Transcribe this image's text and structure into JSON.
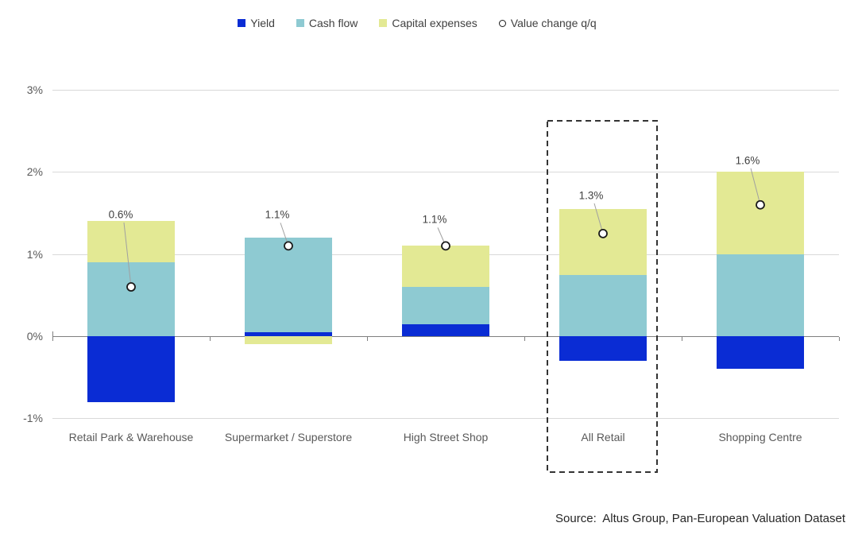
{
  "chart_data": {
    "type": "bar",
    "stacked": true,
    "title": "",
    "categories": [
      "Retail Park & Warehouse",
      "Supermarket / Superstore",
      "High Street Shop",
      "All Retail",
      "Shopping Centre"
    ],
    "series": [
      {
        "name": "Yield",
        "color": "#0A2CD4",
        "values": [
          -0.8,
          0.05,
          0.15,
          -0.3,
          -0.4
        ]
      },
      {
        "name": "Cash flow",
        "color": "#8ECAD2",
        "values": [
          0.9,
          1.15,
          0.45,
          0.75,
          1.0
        ]
      },
      {
        "name": "Capital expenses",
        "color": "#E3E994",
        "values": [
          0.5,
          -0.1,
          0.5,
          0.8,
          1.0
        ]
      }
    ],
    "markers": {
      "name": "Value change q/q",
      "values": [
        0.6,
        1.1,
        1.1,
        1.25,
        1.6
      ],
      "labels": [
        "0.6%",
        "1.1%",
        "1.1%",
        "1.3%",
        "1.6%"
      ]
    },
    "y_axis": {
      "tick_values": [
        3,
        2,
        1,
        0,
        -1
      ],
      "tick_labels": [
        "3%",
        "2%",
        "1%",
        "0%",
        "-1%"
      ],
      "ylim": [
        -1,
        3
      ],
      "grid": true
    },
    "highlight": {
      "category": "All Retail"
    },
    "legend_position": "top",
    "source": "Source:  Altus Group, Pan-European Valuation Dataset"
  },
  "colors": {
    "grid": "#D9D9D9",
    "zero_line": "#7F7F7F",
    "axis_text": "#595959",
    "data_label_text": "#404040",
    "leader_line": "#A0A0A0",
    "marker_stroke": "#1A1A1A",
    "marker_fill": "#FFFFFF",
    "highlight_border": "#333333",
    "background": "#FFFFFF"
  }
}
